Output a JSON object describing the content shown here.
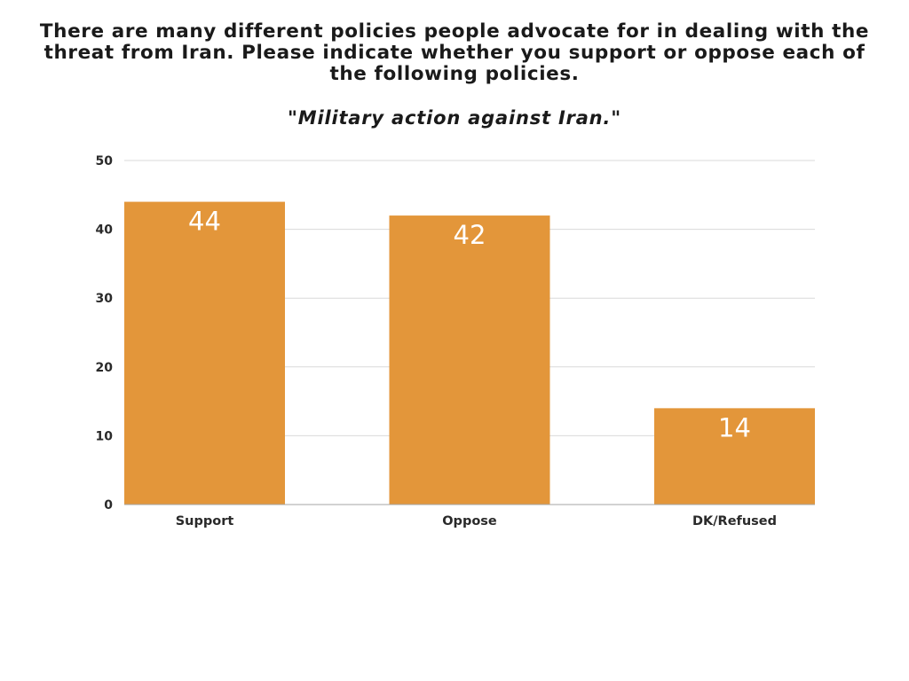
{
  "chart_data": {
    "type": "bar",
    "title": "There are many different policies people advocate for in dealing with the threat from Iran. Please indicate whether you support or oppose each of the following policies.",
    "subtitle": "\"Military action against Iran.\"",
    "categories": [
      "Support",
      "Oppose",
      "DK/Refused"
    ],
    "values": [
      44,
      42,
      14
    ],
    "xlabel": "",
    "ylabel": "",
    "ylim": [
      0,
      50
    ],
    "yticks": [
      0,
      10,
      20,
      30,
      40,
      50
    ],
    "grid": true,
    "legend": "none",
    "bar_color": "#E3963A",
    "grid_color": "#d9d9d9",
    "axis_color": "#a6a6a6"
  }
}
